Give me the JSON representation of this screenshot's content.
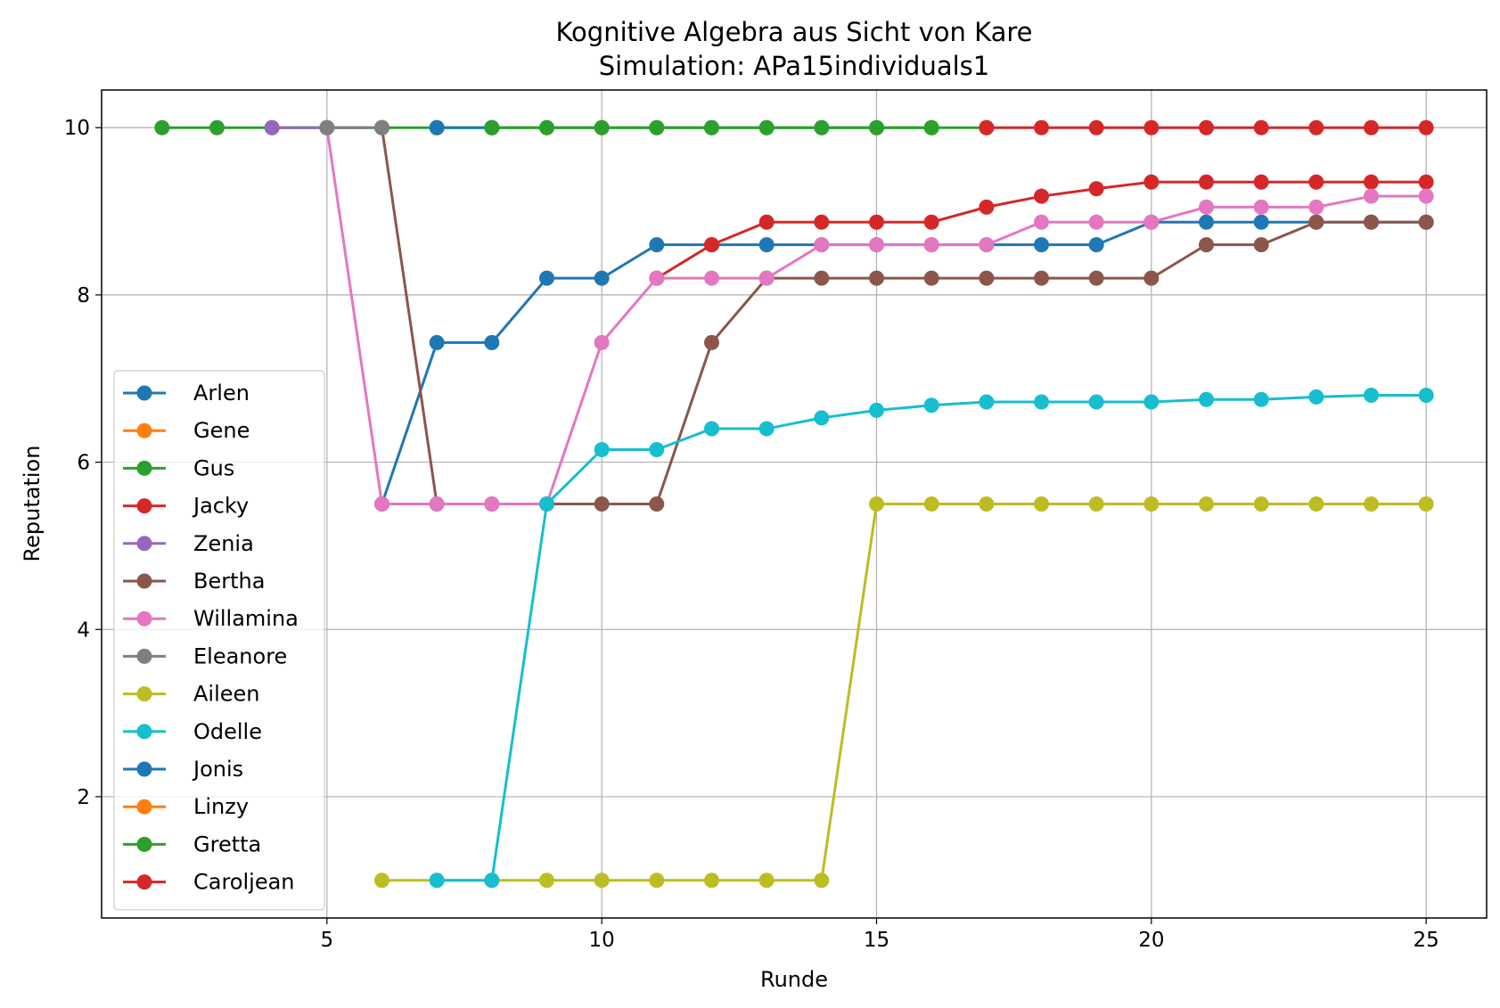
{
  "chart_data": {
    "type": "line",
    "title": "Kognitive Algebra aus Sicht von Kare",
    "subtitle": "Simulation: APa15individuals1",
    "xlabel": "Runde",
    "ylabel": "Reputation",
    "xlim": [
      0.9,
      26.1
    ],
    "ylim": [
      0.55,
      10.45
    ],
    "xticks": [
      5,
      10,
      15,
      20,
      25
    ],
    "yticks": [
      2,
      4,
      6,
      8,
      10
    ],
    "grid": true,
    "legend_position": "lower-left",
    "series": [
      {
        "name": "Arlen",
        "color": "#1f77b4",
        "x": [
          6,
          7,
          8,
          9,
          10,
          11,
          12,
          13,
          14,
          15,
          16,
          17,
          18,
          19,
          20,
          21,
          22,
          23,
          24,
          25
        ],
        "y": [
          5.5,
          7.43,
          7.43,
          8.2,
          8.2,
          8.6,
          8.6,
          8.6,
          8.6,
          8.6,
          8.6,
          8.6,
          8.6,
          8.6,
          8.87,
          8.87,
          8.87,
          8.87,
          8.87,
          8.87
        ]
      },
      {
        "name": "Gene",
        "color": "#ff7f0e",
        "x": [],
        "y": []
      },
      {
        "name": "Gus",
        "color": "#2ca02c",
        "x": [
          2,
          3,
          4,
          5,
          6,
          7,
          8,
          9,
          10,
          11,
          12,
          13,
          14,
          15,
          16,
          17
        ],
        "y": [
          10,
          10,
          10,
          10,
          10,
          10,
          10,
          10,
          10,
          10,
          10,
          10,
          10,
          10,
          10,
          10
        ]
      },
      {
        "name": "Jacky",
        "color": "#d62728",
        "x": [
          11,
          12,
          13,
          14,
          15,
          16,
          17,
          18,
          19,
          20,
          21,
          22,
          23,
          24,
          25
        ],
        "y": [
          8.2,
          8.6,
          8.87,
          8.87,
          8.87,
          8.87,
          9.05,
          9.18,
          9.27,
          9.35,
          9.35,
          9.35,
          9.35,
          9.35,
          9.35
        ]
      },
      {
        "name": "Zenia",
        "color": "#9467bd",
        "x": [
          4,
          5
        ],
        "y": [
          10,
          10
        ]
      },
      {
        "name": "Bertha",
        "color": "#8c564b",
        "x": [
          6,
          7,
          8,
          9,
          10,
          11,
          12,
          13,
          14,
          15,
          16,
          17,
          18,
          19,
          20,
          21,
          22,
          23,
          24,
          25
        ],
        "y": [
          10,
          5.5,
          5.5,
          5.5,
          5.5,
          5.5,
          7.43,
          8.2,
          8.2,
          8.2,
          8.2,
          8.2,
          8.2,
          8.2,
          8.2,
          8.6,
          8.6,
          8.87,
          8.87,
          8.87
        ]
      },
      {
        "name": "Willamina",
        "color": "#e377c2",
        "x": [
          5,
          6,
          7,
          8,
          9,
          10,
          11,
          12,
          13,
          14,
          15,
          16,
          17,
          18,
          19,
          20,
          21,
          22,
          23,
          24,
          25
        ],
        "y": [
          10,
          5.5,
          5.5,
          5.5,
          5.5,
          7.43,
          8.2,
          8.2,
          8.2,
          8.6,
          8.6,
          8.6,
          8.6,
          8.87,
          8.87,
          8.87,
          9.05,
          9.05,
          9.05,
          9.18,
          9.18
        ]
      },
      {
        "name": "Eleanore",
        "color": "#7f7f7f",
        "x": [
          5,
          6
        ],
        "y": [
          10,
          10
        ]
      },
      {
        "name": "Aileen",
        "color": "#bcbd22",
        "x": [
          6,
          7,
          8,
          9,
          10,
          11,
          12,
          13,
          14,
          15,
          16,
          17,
          18,
          19,
          20,
          21,
          22,
          23,
          24,
          25
        ],
        "y": [
          1,
          1,
          1,
          1,
          1,
          1,
          1,
          1,
          1,
          5.5,
          5.5,
          5.5,
          5.5,
          5.5,
          5.5,
          5.5,
          5.5,
          5.5,
          5.5,
          5.5
        ]
      },
      {
        "name": "Odelle",
        "color": "#17becf",
        "x": [
          7,
          8,
          9,
          10,
          11,
          12,
          13,
          14,
          15,
          16,
          17,
          18,
          19,
          20,
          21,
          22,
          23,
          24,
          25
        ],
        "y": [
          1,
          1,
          5.5,
          6.15,
          6.15,
          6.4,
          6.4,
          6.53,
          6.62,
          6.68,
          6.72,
          6.72,
          6.72,
          6.72,
          6.75,
          6.75,
          6.78,
          6.8,
          6.8
        ]
      },
      {
        "name": "Jonis",
        "color": "#1f77b4",
        "x": [
          7,
          8
        ],
        "y": [
          10,
          10
        ]
      },
      {
        "name": "Linzy",
        "color": "#ff7f0e",
        "x": [],
        "y": []
      },
      {
        "name": "Gretta",
        "color": "#2ca02c",
        "x": [
          8,
          9,
          10,
          11,
          12,
          13,
          14,
          15,
          16
        ],
        "y": [
          10,
          10,
          10,
          10,
          10,
          10,
          10,
          10,
          10
        ]
      },
      {
        "name": "Caroljean",
        "color": "#d62728",
        "x": [
          17,
          18,
          19,
          20,
          21,
          22,
          23,
          24,
          25
        ],
        "y": [
          10,
          10,
          10,
          10,
          10,
          10,
          10,
          10,
          10
        ]
      }
    ]
  }
}
